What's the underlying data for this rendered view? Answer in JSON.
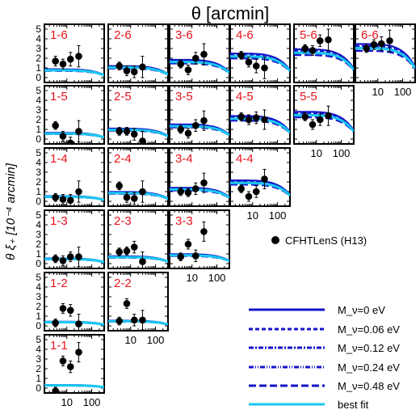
{
  "figure": {
    "top_label": "θ [arcmin]",
    "y_label": "θ ξ₊ [10⁻⁴ arcmin]"
  },
  "chart_data": {
    "type": "scatter",
    "x_scale": "log",
    "x_tick_labels": [
      "10",
      "100"
    ],
    "y_tick_labels": [
      "0",
      "1",
      "2",
      "3",
      "4",
      "5"
    ],
    "ylim": [
      -0.5,
      5.5
    ],
    "xlim_log10": [
      0.1,
      2.5
    ],
    "colors": {
      "panel_label": "#e8141d",
      "points": "#000000",
      "model": "#1414c8",
      "best_fit": "#19c8f0"
    },
    "legend": {
      "points_label": "CFHTLenS (H13)",
      "line_labels": [
        "M_ν=0 eV",
        "M_ν=0.06 eV",
        "M_ν=0.12 eV",
        "M_ν=0.24 eV",
        "M_ν=0.48 eV",
        "best fit"
      ]
    },
    "panels": [
      {
        "label": "1-6",
        "row": 0,
        "col": 0,
        "model_amp": 0.8,
        "points": [
          {
            "x": 3.5,
            "y": 1.7,
            "e": 0.5
          },
          {
            "x": 7,
            "y": 1.4,
            "e": 0.5
          },
          {
            "x": 14,
            "y": 1.9,
            "e": 0.7
          },
          {
            "x": 30,
            "y": 2.2,
            "e": 1.1
          }
        ]
      },
      {
        "label": "2-6",
        "row": 0,
        "col": 1,
        "model_amp": 1.1,
        "points": [
          {
            "x": 3.5,
            "y": 1.2,
            "e": 0.4
          },
          {
            "x": 7,
            "y": 0.7,
            "e": 0.5
          },
          {
            "x": 14,
            "y": 0.6,
            "e": 0.6
          },
          {
            "x": 30,
            "y": 1.1,
            "e": 1.1
          }
        ]
      },
      {
        "label": "3-6",
        "row": 0,
        "col": 2,
        "model_amp": 1.7,
        "points": [
          {
            "x": 3.5,
            "y": 1.4,
            "e": 0.4
          },
          {
            "x": 7,
            "y": 0.8,
            "e": 0.5
          },
          {
            "x": 14,
            "y": 2.0,
            "e": 0.6
          },
          {
            "x": 30,
            "y": 2.4,
            "e": 1.1
          }
        ]
      },
      {
        "label": "4-6",
        "row": 0,
        "col": 3,
        "model_amp": 2.3,
        "points": [
          {
            "x": 3.5,
            "y": 2.3,
            "e": 0.4
          },
          {
            "x": 7,
            "y": 1.6,
            "e": 0.5
          },
          {
            "x": 14,
            "y": 1.2,
            "e": 0.7
          },
          {
            "x": 30,
            "y": 1.0,
            "e": 1.1
          }
        ]
      },
      {
        "label": "5-6",
        "row": 0,
        "col": 4,
        "model_amp": 2.7,
        "points": [
          {
            "x": 3.5,
            "y": 3.0,
            "e": 0.4
          },
          {
            "x": 7,
            "y": 2.8,
            "e": 0.5
          },
          {
            "x": 14,
            "y": 3.8,
            "e": 0.6
          },
          {
            "x": 30,
            "y": 3.9,
            "e": 1.1
          }
        ]
      },
      {
        "label": "6-6",
        "row": 0,
        "col": 5,
        "model_amp": 3.2,
        "points": [
          {
            "x": 3.5,
            "y": 3.0,
            "e": 0.4
          },
          {
            "x": 7,
            "y": 3.4,
            "e": 0.5
          },
          {
            "x": 14,
            "y": 3.5,
            "e": 0.7
          },
          {
            "x": 30,
            "y": 3.8,
            "e": 1.1
          }
        ]
      },
      {
        "label": "1-5",
        "row": 1,
        "col": 0,
        "model_amp": 0.6,
        "points": [
          {
            "x": 3.5,
            "y": 1.4,
            "e": 0.4
          },
          {
            "x": 7,
            "y": 0.3,
            "e": 0.5
          },
          {
            "x": 14,
            "y": -0.4,
            "e": 0.6
          },
          {
            "x": 30,
            "y": 0.8,
            "e": 1.1
          }
        ]
      },
      {
        "label": "2-5",
        "row": 1,
        "col": 1,
        "model_amp": 1.0,
        "points": [
          {
            "x": 3.5,
            "y": 0.8,
            "e": 0.4
          },
          {
            "x": 7,
            "y": 0.8,
            "e": 0.4
          },
          {
            "x": 14,
            "y": 0.5,
            "e": 0.6
          },
          {
            "x": 30,
            "y": -0.2,
            "e": 1.0
          }
        ]
      },
      {
        "label": "3-5",
        "row": 1,
        "col": 2,
        "model_amp": 1.4,
        "points": [
          {
            "x": 3.5,
            "y": 1.0,
            "e": 0.4
          },
          {
            "x": 7,
            "y": 0.6,
            "e": 0.5
          },
          {
            "x": 14,
            "y": 1.4,
            "e": 0.6
          },
          {
            "x": 30,
            "y": 1.9,
            "e": 1.0
          }
        ]
      },
      {
        "label": "4-5",
        "row": 1,
        "col": 3,
        "model_amp": 2.2,
        "points": [
          {
            "x": 3.5,
            "y": 2.3,
            "e": 0.4
          },
          {
            "x": 7,
            "y": 2.0,
            "e": 0.5
          },
          {
            "x": 14,
            "y": 2.2,
            "e": 0.6
          },
          {
            "x": 30,
            "y": 2.0,
            "e": 1.0
          }
        ]
      },
      {
        "label": "5-5",
        "row": 1,
        "col": 4,
        "model_amp": 2.6,
        "points": [
          {
            "x": 3.5,
            "y": 2.3,
            "e": 0.4
          },
          {
            "x": 7,
            "y": 1.5,
            "e": 0.5
          },
          {
            "x": 14,
            "y": 2.0,
            "e": 0.6
          },
          {
            "x": 30,
            "y": 2.4,
            "e": 1.0
          }
        ]
      },
      {
        "label": "1-4",
        "row": 2,
        "col": 0,
        "model_amp": 0.5,
        "points": [
          {
            "x": 3.5,
            "y": 0.4,
            "e": 0.4
          },
          {
            "x": 7,
            "y": 0.2,
            "e": 0.5
          },
          {
            "x": 14,
            "y": 0.1,
            "e": 0.6
          },
          {
            "x": 30,
            "y": 1.0,
            "e": 1.1
          }
        ]
      },
      {
        "label": "2-4",
        "row": 2,
        "col": 1,
        "model_amp": 0.9,
        "points": [
          {
            "x": 3.5,
            "y": 1.6,
            "e": 0.4
          },
          {
            "x": 7,
            "y": 0.4,
            "e": 0.5
          },
          {
            "x": 14,
            "y": 0.3,
            "e": 0.6
          },
          {
            "x": 30,
            "y": 1.0,
            "e": 1.1
          }
        ]
      },
      {
        "label": "3-4",
        "row": 2,
        "col": 2,
        "model_amp": 1.3,
        "points": [
          {
            "x": 3.5,
            "y": 1.0,
            "e": 0.4
          },
          {
            "x": 7,
            "y": 0.9,
            "e": 0.4
          },
          {
            "x": 14,
            "y": 1.3,
            "e": 0.6
          },
          {
            "x": 30,
            "y": 1.9,
            "e": 1.0
          }
        ]
      },
      {
        "label": "4-4",
        "row": 2,
        "col": 3,
        "model_amp": 2.0,
        "points": [
          {
            "x": 3.5,
            "y": 1.3,
            "e": 0.4
          },
          {
            "x": 7,
            "y": 0.5,
            "e": 0.5
          },
          {
            "x": 14,
            "y": 1.0,
            "e": 0.6
          },
          {
            "x": 30,
            "y": 2.3,
            "e": 1.0
          }
        ]
      },
      {
        "label": "1-3",
        "row": 3,
        "col": 0,
        "model_amp": 0.5,
        "points": [
          {
            "x": 3.5,
            "y": 0.5,
            "e": 0.4
          },
          {
            "x": 7,
            "y": 0.3,
            "e": 0.5
          },
          {
            "x": 14,
            "y": 0.7,
            "e": 0.5
          },
          {
            "x": 30,
            "y": 0.7,
            "e": 1.0
          }
        ]
      },
      {
        "label": "2-3",
        "row": 3,
        "col": 1,
        "model_amp": 0.7,
        "points": [
          {
            "x": 3.5,
            "y": 1.2,
            "e": 0.4
          },
          {
            "x": 7,
            "y": 1.3,
            "e": 0.4
          },
          {
            "x": 14,
            "y": 1.7,
            "e": 0.6
          },
          {
            "x": 30,
            "y": 0.2,
            "e": 1.0
          }
        ]
      },
      {
        "label": "3-3",
        "row": 3,
        "col": 2,
        "model_amp": 0.9,
        "points": [
          {
            "x": 3.5,
            "y": 0.7,
            "e": 0.4
          },
          {
            "x": 7,
            "y": 2.0,
            "e": 0.5
          },
          {
            "x": 14,
            "y": 0.8,
            "e": 0.6
          },
          {
            "x": 30,
            "y": 3.3,
            "e": 1.0
          }
        ]
      },
      {
        "label": "1-2",
        "row": 4,
        "col": 0,
        "model_amp": 0.4,
        "points": [
          {
            "x": 3.5,
            "y": 0.3,
            "e": 0.4
          },
          {
            "x": 7,
            "y": 1.8,
            "e": 0.5
          },
          {
            "x": 14,
            "y": 1.6,
            "e": 0.6
          },
          {
            "x": 30,
            "y": 0.2,
            "e": 1.0
          }
        ]
      },
      {
        "label": "2-2",
        "row": 4,
        "col": 1,
        "model_amp": 0.5,
        "points": [
          {
            "x": 3.5,
            "y": 0.5,
            "e": 0.4
          },
          {
            "x": 7,
            "y": 2.3,
            "e": 0.5
          },
          {
            "x": 14,
            "y": 0.6,
            "e": 0.6
          },
          {
            "x": 30,
            "y": 0.6,
            "e": 1.0
          }
        ]
      },
      {
        "label": "1-1",
        "row": 5,
        "col": 0,
        "model_amp": 0.3,
        "points": [
          {
            "x": 3.5,
            "y": -0.3,
            "e": 0.4
          },
          {
            "x": 7,
            "y": 2.8,
            "e": 0.5
          },
          {
            "x": 14,
            "y": 2.2,
            "e": 0.6
          },
          {
            "x": 30,
            "y": 3.7,
            "e": 1.0
          }
        ]
      }
    ]
  }
}
